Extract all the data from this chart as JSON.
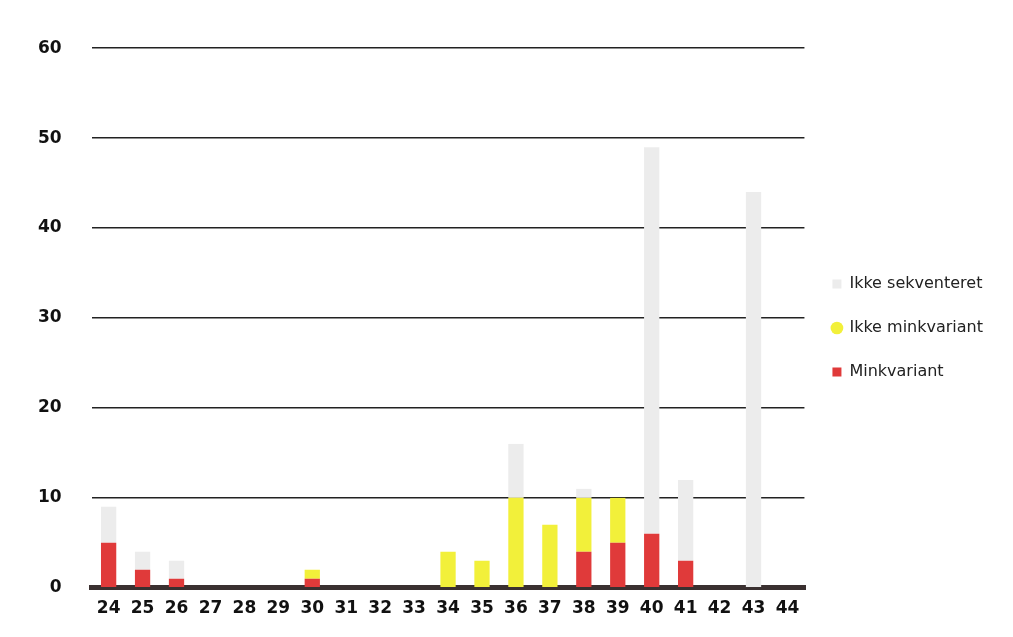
{
  "chart_data": {
    "type": "bar",
    "stacked": true,
    "categories": [
      "24",
      "25",
      "26",
      "27",
      "28",
      "29",
      "30",
      "31",
      "32",
      "33",
      "34",
      "35",
      "36",
      "37",
      "38",
      "39",
      "40",
      "41",
      "42",
      "43",
      "44"
    ],
    "series": [
      {
        "name": "Minkvariant",
        "color": "#e03a3a",
        "values": [
          5,
          2,
          1,
          0,
          0,
          0,
          1,
          0,
          0,
          0,
          0,
          0,
          0,
          0,
          4,
          5,
          6,
          3,
          0,
          0,
          0
        ]
      },
      {
        "name": "Ikke minkvariant",
        "color": "#f2f03a",
        "values": [
          0,
          0,
          0,
          0,
          0,
          0,
          1,
          0,
          0,
          0,
          4,
          3,
          10,
          7,
          6,
          5,
          0,
          0,
          0,
          0,
          0
        ]
      },
      {
        "name": "Ikke sekventeret",
        "color": "#ececec",
        "values": [
          4,
          2,
          2,
          0,
          0,
          0,
          0,
          0,
          0,
          0,
          0,
          0,
          6,
          0,
          1,
          0,
          43,
          9,
          0,
          44,
          0
        ]
      }
    ],
    "ylim": [
      0,
      60
    ],
    "yticks": [
      0,
      10,
      20,
      30,
      40,
      50,
      60
    ],
    "grid": "y",
    "legend": "right"
  }
}
